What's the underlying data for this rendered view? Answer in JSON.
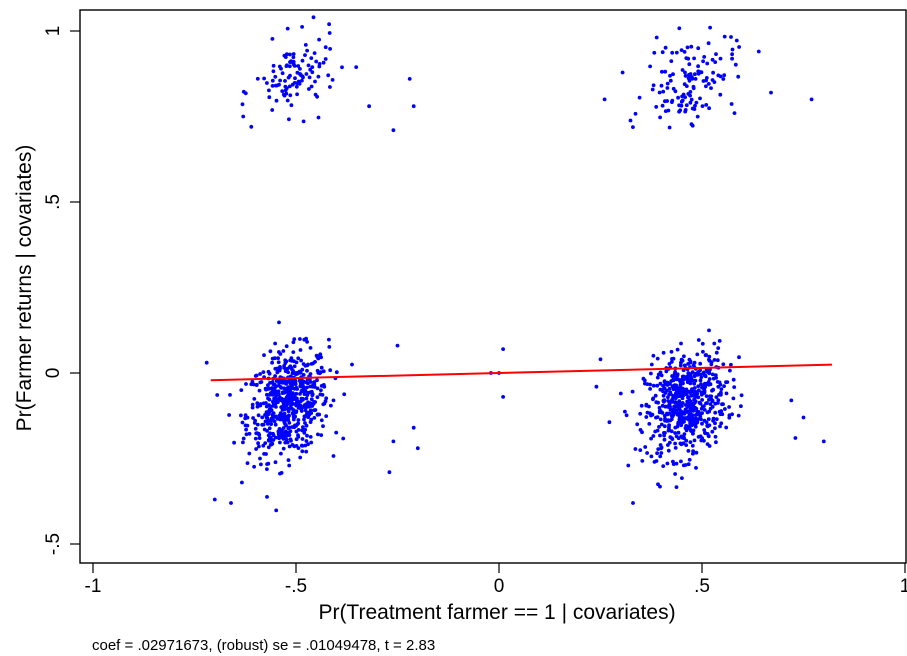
{
  "chart_data": {
    "type": "scatter",
    "title": "",
    "xlabel": "Pr(Treatment farmer == 1 | covariates)",
    "ylabel": "Pr(Farmer returns | covariates)",
    "xlim": [
      -1,
      1
    ],
    "ylim": [
      -0.5,
      1
    ],
    "xticks": [
      {
        "value": -1,
        "label": "-1"
      },
      {
        "value": -0.5,
        "label": "-.5"
      },
      {
        "value": 0,
        "label": "0"
      },
      {
        "value": 0.5,
        "label": ".5"
      },
      {
        "value": 1,
        "label": "1"
      }
    ],
    "yticks": [
      {
        "value": -0.5,
        "label": "-.5"
      },
      {
        "value": 0,
        "label": "0"
      },
      {
        "value": 0.5,
        "label": ".5"
      },
      {
        "value": 1,
        "label": "1"
      }
    ],
    "grid": false,
    "legend": "none",
    "note": "coef = .02971673, (robust) se = .01049478, t = 2.83",
    "point_color": "#0000ff",
    "fit_color": "#ff0000",
    "fit_line": {
      "slope": 0.02971673,
      "x": [
        -0.71,
        0.82
      ]
    },
    "clusters": [
      {
        "cx": -0.52,
        "cy": -0.09,
        "sx": 0.05,
        "sy": 0.075,
        "n": 620
      },
      {
        "cx": 0.46,
        "cy": -0.09,
        "sx": 0.05,
        "sy": 0.075,
        "n": 620
      },
      {
        "cx": -0.5,
        "cy": 0.865,
        "sx": 0.05,
        "sy": 0.055,
        "n": 110
      },
      {
        "cx": 0.47,
        "cy": 0.86,
        "sx": 0.055,
        "sy": 0.06,
        "n": 130
      }
    ],
    "points": [
      [
        -0.7,
        -0.37
      ],
      [
        -0.66,
        -0.38
      ],
      [
        -0.72,
        0.03
      ],
      [
        -0.27,
        -0.29
      ],
      [
        -0.2,
        -0.22
      ],
      [
        -0.21,
        -0.16
      ],
      [
        -0.26,
        -0.2
      ],
      [
        -0.25,
        0.08
      ],
      [
        0.01,
        0.07
      ],
      [
        0.01,
        -0.07
      ],
      [
        0.0,
        0.0
      ],
      [
        -0.02,
        0.0
      ],
      [
        0.33,
        -0.38
      ],
      [
        0.8,
        -0.2
      ],
      [
        0.75,
        -0.13
      ],
      [
        0.72,
        -0.08
      ],
      [
        0.73,
        -0.19
      ],
      [
        0.25,
        0.04
      ],
      [
        0.24,
        -0.04
      ],
      [
        0.3,
        -0.06
      ],
      [
        0.77,
        0.8
      ],
      [
        0.67,
        0.82
      ],
      [
        0.64,
        0.94
      ],
      [
        -0.26,
        0.71
      ],
      [
        -0.21,
        0.78
      ],
      [
        -0.22,
        0.86
      ],
      [
        -0.32,
        0.78
      ],
      [
        0.26,
        0.8
      ],
      [
        -0.63,
        0.75
      ],
      [
        -0.61,
        0.72
      ],
      [
        0.58,
        0.76
      ],
      [
        0.52,
        1.01
      ]
    ]
  }
}
